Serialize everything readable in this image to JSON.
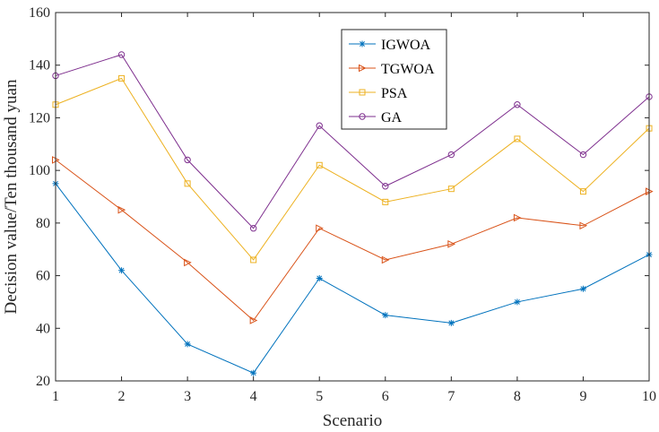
{
  "chart_data": {
    "type": "line",
    "title": "",
    "xlabel": "Scenario",
    "ylabel": "Decision value/Ten thousand yuan",
    "x": [
      1,
      2,
      3,
      4,
      5,
      6,
      7,
      8,
      9,
      10
    ],
    "xlim": [
      1,
      10
    ],
    "ylim": [
      20,
      160
    ],
    "xticks": [
      "1",
      "2",
      "3",
      "4",
      "5",
      "6",
      "7",
      "8",
      "9",
      "10"
    ],
    "yticks": [
      20,
      40,
      60,
      80,
      100,
      120,
      140,
      160
    ],
    "grid": false,
    "legend_position": "top-center",
    "series": [
      {
        "name": "IGWOA",
        "color": "#0072BD",
        "marker": "asterisk",
        "values": [
          95,
          62,
          34,
          23,
          59,
          45,
          42,
          50,
          55,
          68
        ]
      },
      {
        "name": "TGWOA",
        "color": "#D95319",
        "marker": "triangle-right",
        "values": [
          104,
          85,
          65,
          43,
          78,
          66,
          72,
          82,
          79,
          92
        ]
      },
      {
        "name": "PSA",
        "color": "#EDB120",
        "marker": "square",
        "values": [
          125,
          135,
          95,
          66,
          102,
          88,
          93,
          112,
          92,
          116
        ]
      },
      {
        "name": "GA",
        "color": "#7E2F8E",
        "marker": "circle",
        "values": [
          136,
          144,
          104,
          78,
          117,
          94,
          106,
          125,
          106,
          128
        ]
      }
    ]
  }
}
